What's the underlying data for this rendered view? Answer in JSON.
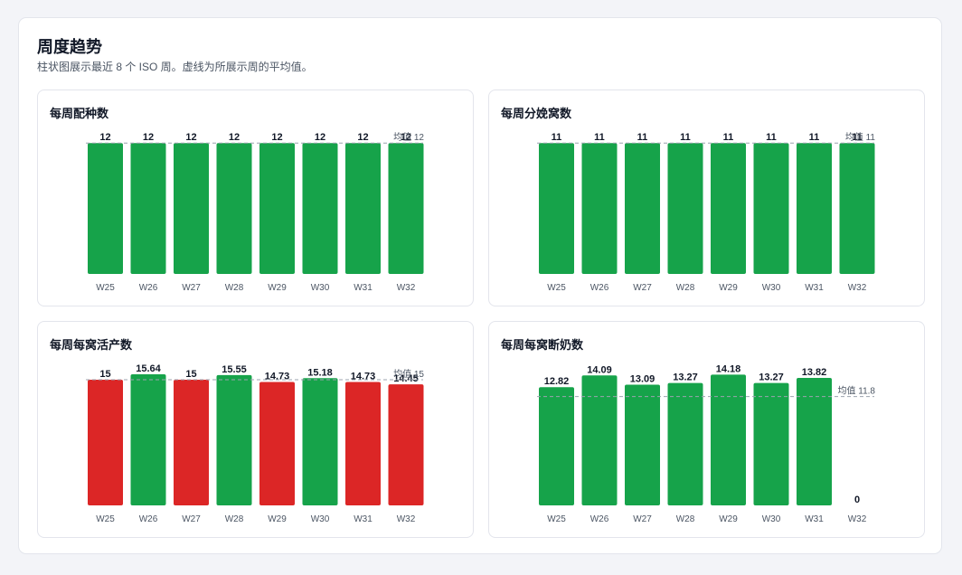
{
  "header": {
    "title": "周度趋势",
    "subtitle": "柱状图展示最近 8 个 ISO 周。虚线为所展示周的平均值。"
  },
  "colors": {
    "good": "#16a34a",
    "bad": "#dc2626",
    "avg_line": "#9ca3af"
  },
  "chart_data": [
    {
      "type": "bar",
      "title": "每周配种数",
      "categories": [
        "W25",
        "W26",
        "W27",
        "W28",
        "W29",
        "W30",
        "W31",
        "W32"
      ],
      "values": [
        12,
        12,
        12,
        12,
        12,
        12,
        12,
        12
      ],
      "value_labels": [
        "12",
        "12",
        "12",
        "12",
        "12",
        "12",
        "12",
        "12"
      ],
      "bar_colors": [
        "good",
        "good",
        "good",
        "good",
        "good",
        "good",
        "good",
        "good"
      ],
      "average": 12,
      "average_label": "均值 12",
      "ylim": [
        0,
        12.6
      ],
      "grid": false
    },
    {
      "type": "bar",
      "title": "每周分娩窝数",
      "categories": [
        "W25",
        "W26",
        "W27",
        "W28",
        "W29",
        "W30",
        "W31",
        "W32"
      ],
      "values": [
        11,
        11,
        11,
        11,
        11,
        11,
        11,
        11
      ],
      "value_labels": [
        "11",
        "11",
        "11",
        "11",
        "11",
        "11",
        "11",
        "11"
      ],
      "bar_colors": [
        "good",
        "good",
        "good",
        "good",
        "good",
        "good",
        "good",
        "good"
      ],
      "average": 11,
      "average_label": "均值 11",
      "ylim": [
        0,
        11.55
      ],
      "grid": false
    },
    {
      "type": "bar",
      "title": "每周每窝活产数",
      "categories": [
        "W25",
        "W26",
        "W27",
        "W28",
        "W29",
        "W30",
        "W31",
        "W32"
      ],
      "values": [
        15,
        15.64,
        15,
        15.55,
        14.73,
        15.18,
        14.73,
        14.45
      ],
      "value_labels": [
        "15",
        "15.64",
        "15",
        "15.55",
        "14.73",
        "15.18",
        "14.73",
        "14.45"
      ],
      "bar_colors": [
        "bad",
        "good",
        "bad",
        "good",
        "bad",
        "good",
        "bad",
        "bad"
      ],
      "average": 15,
      "average_label": "均值 15",
      "ylim": [
        0,
        16.4
      ],
      "grid": false
    },
    {
      "type": "bar",
      "title": "每周每窝断奶数",
      "categories": [
        "W25",
        "W26",
        "W27",
        "W28",
        "W29",
        "W30",
        "W31",
        "W32"
      ],
      "values": [
        12.82,
        14.09,
        13.09,
        13.27,
        14.18,
        13.27,
        13.82,
        0
      ],
      "value_labels": [
        "12.82",
        "14.09",
        "13.09",
        "13.27",
        "14.18",
        "13.27",
        "13.82",
        "0"
      ],
      "bar_colors": [
        "good",
        "good",
        "good",
        "good",
        "good",
        "good",
        "good",
        "good"
      ],
      "average": 11.8,
      "average_label": "均值 11.8",
      "ylim": [
        0,
        14.9
      ],
      "grid": false
    }
  ]
}
